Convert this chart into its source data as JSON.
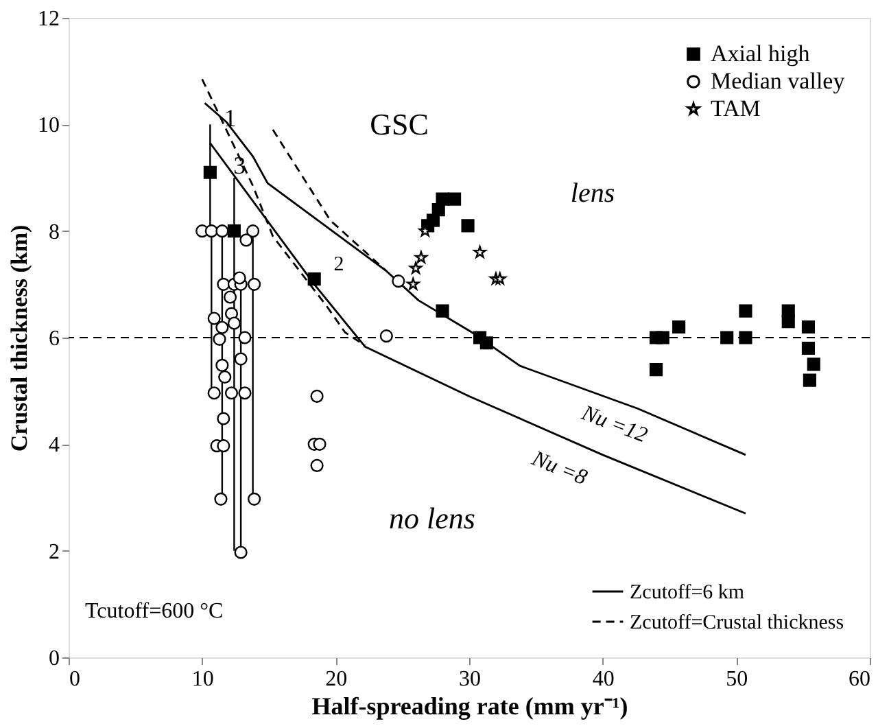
{
  "chart_data": {
    "type": "scatter",
    "xlabel": "Half-spreading rate (mm yr⁻¹)",
    "ylabel": "Crustal thickness (km)",
    "xlim": [
      0,
      60
    ],
    "xticks": [
      0,
      10,
      20,
      30,
      40,
      50,
      60
    ],
    "ylim": [
      0,
      12
    ],
    "yticks": [
      0,
      2,
      4,
      6,
      8,
      10,
      12
    ],
    "grid": false,
    "legend": "top right",
    "ref_lines": [
      {
        "axis": "y",
        "value": 6,
        "line_style": "dashed",
        "color": "#000000"
      }
    ],
    "series": [
      {
        "name": "Zcutoff=6 km",
        "type": "line",
        "color": "#000000",
        "line_style": "solid",
        "x": [
          10.6,
          18.4,
          22.2,
          30,
          40,
          50.7
        ],
        "values": [
          9.65,
          7.0,
          5.83,
          4.9,
          3.8,
          2.7
        ]
      },
      {
        "type": "line",
        "color": "#000000",
        "line_style": "solid",
        "x": [
          10.2,
          11.8,
          13.8,
          14.9,
          23.8,
          26.2,
          30.2,
          33.8,
          42.6,
          50.7
        ],
        "values": [
          10.4,
          10.05,
          9.4,
          8.9,
          7.25,
          6.7,
          6.1,
          5.47,
          4.67,
          3.8
        ]
      },
      {
        "name": "Zcutoff=Crustal thickness",
        "type": "line",
        "color": "#000000",
        "line_style": "dashed",
        "x": [
          10.0,
          12.0,
          13.8,
          15.3,
          19.3,
          20.7,
          22.2
        ],
        "values": [
          10.85,
          9.8,
          8.85,
          7.9,
          6.6,
          6.1,
          5.85
        ]
      },
      {
        "type": "line",
        "color": "#000000",
        "line_style": "dashed",
        "x": [
          15.3,
          19.6,
          23.8
        ],
        "values": [
          9.9,
          8.2,
          7.25
        ]
      },
      {
        "name": "Axial high",
        "color": "#000000",
        "marker": "square",
        "x": [
          10.6,
          12.4,
          18.4,
          27.7,
          27.3,
          26.9,
          28.0,
          28.9,
          29.9,
          28.0,
          30.8,
          31.3,
          44.0,
          44.5,
          44.0,
          45.7,
          49.3,
          50.7,
          50.7,
          53.9,
          53.9,
          55.4,
          55.4,
          55.8,
          55.5
        ],
        "values": [
          9.1,
          8.0,
          7.1,
          8.4,
          8.2,
          8.1,
          8.6,
          8.6,
          8.1,
          6.5,
          6.0,
          5.9,
          6.0,
          6.0,
          5.4,
          6.2,
          6.0,
          6.5,
          6.0,
          6.5,
          6.3,
          6.2,
          5.8,
          5.5,
          5.2
        ],
        "errors": [
          [
            8.1,
            10.0
          ],
          [
            2.0,
            9.0
          ],
          null,
          null,
          null,
          null,
          null,
          null,
          null,
          null,
          null,
          null,
          null,
          null,
          null,
          null,
          null,
          null,
          null,
          null,
          null,
          null,
          null,
          null,
          null
        ]
      },
      {
        "name": "Median valley",
        "color": "#000000",
        "marker": "circle",
        "x": [
          10.0,
          10.7,
          11.5,
          13.8,
          13.3,
          11.6,
          12.4,
          12.9,
          13.9,
          12.8,
          12.1,
          12.2,
          12.4,
          10.9,
          11.5,
          11.3,
          13.2,
          12.9,
          11.5,
          11.7,
          10.9,
          12.2,
          13.2,
          11.6,
          11.1,
          11.6,
          11.4,
          13.9,
          12.9,
          18.6,
          18.4,
          18.8,
          18.6,
          24.7,
          23.8
        ],
        "values": [
          8.0,
          8.0,
          8.0,
          8.0,
          7.83,
          7.0,
          7.0,
          7.0,
          7.0,
          7.12,
          6.76,
          6.45,
          6.27,
          6.36,
          6.19,
          5.97,
          6.0,
          5.6,
          5.48,
          5.26,
          4.96,
          4.96,
          4.96,
          4.48,
          3.97,
          3.97,
          2.97,
          2.97,
          1.97,
          4.9,
          4.0,
          4.0,
          3.6,
          7.06,
          6.03
        ],
        "errors": [
          null,
          [
            5.0,
            8.0
          ],
          [
            3.0,
            8.0
          ],
          [
            3.0,
            8.0
          ],
          null,
          null,
          null,
          [
            2.0,
            7.0
          ],
          null,
          null,
          null,
          null,
          null,
          null,
          null,
          null,
          null,
          null,
          null,
          null,
          null,
          null,
          null,
          null,
          null,
          null,
          null,
          null,
          null,
          null,
          null,
          null,
          null,
          null,
          null
        ]
      },
      {
        "name": "TAM",
        "color": "#000000",
        "marker": "star",
        "x": [
          26.7,
          26.4,
          26.0,
          25.8,
          30.8,
          32.0,
          32.3
        ],
        "values": [
          8.0,
          7.5,
          7.3,
          7.0,
          7.6,
          7.1,
          7.1
        ]
      }
    ],
    "annotations": [
      "GSC",
      "lens",
      "no lens",
      "2",
      "Tcutoff=600 °C",
      {
        "text": "1",
        "x": 12.1,
        "y": 10.1
      },
      {
        "text": "3",
        "x": 12.8,
        "y": 9.2
      },
      "Nu =12",
      "Nu =8"
    ]
  }
}
